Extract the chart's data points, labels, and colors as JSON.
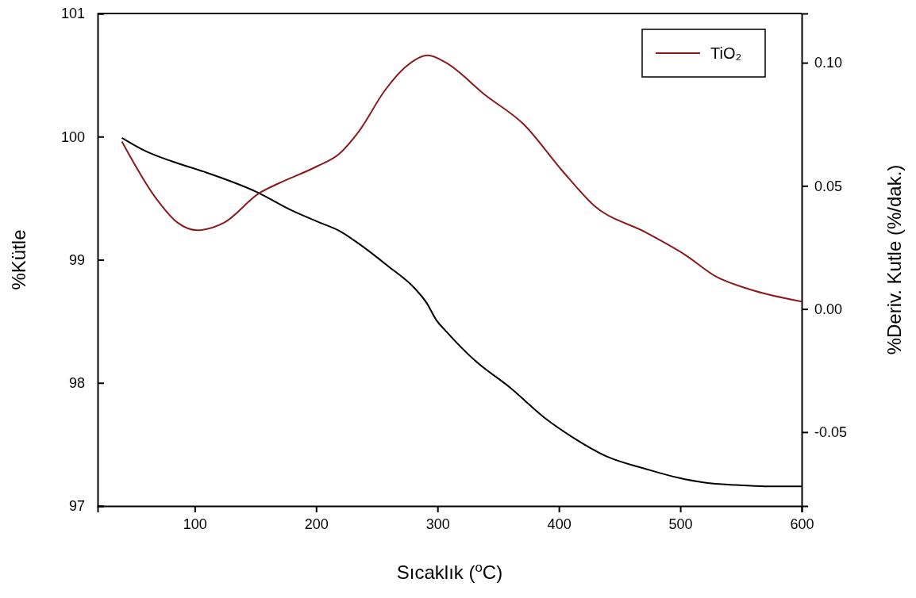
{
  "chart_data": {
    "type": "line",
    "xlabel": "Sıcaklık ($^{o}$C)",
    "ylabel": "%Kütle",
    "y2label": "%Deriv. Kutle (%/dak.)",
    "xlim": [
      20,
      600
    ],
    "xticks": [
      100,
      200,
      300,
      400,
      500,
      600
    ],
    "ylim": [
      97,
      101
    ],
    "yticks": [
      97,
      98,
      99,
      100,
      101
    ],
    "y2lim": [
      -0.08,
      0.12
    ],
    "y2ticks": [
      {
        "value": -0.05,
        "label": "-0.05"
      },
      {
        "value": 0,
        "label": "0.00"
      },
      {
        "value": 0.05,
        "label": "0.05"
      },
      {
        "value": 0.1,
        "label": "0.10"
      }
    ],
    "grid": false,
    "legend": "top right",
    "line_style": "solid",
    "marker": "none",
    "series": [
      {
        "color": "#000000",
        "axis": "y",
        "x": [
          40,
          60,
          81,
          109,
          151,
          180,
          201,
          220,
          238,
          259,
          281,
          291,
          299,
          307,
          331,
          360,
          389,
          411,
          440,
          472,
          498,
          520,
          546,
          570,
          600
        ],
        "values": [
          99.99,
          99.88,
          99.8,
          99.71,
          99.55,
          99.4,
          99.31,
          99.23,
          99.11,
          98.95,
          98.77,
          98.65,
          98.51,
          98.42,
          98.18,
          97.96,
          97.71,
          97.56,
          97.4,
          97.3,
          97.23,
          97.19,
          97.17,
          97.16,
          97.16
        ]
      },
      {
        "name": "TiO₂",
        "color": "#8b1a1a",
        "axis": "y2",
        "x": [
          40,
          68,
          86,
          102,
          124,
          153,
          169,
          201,
          219,
          235,
          257,
          273,
          292,
          307,
          339,
          371,
          403,
          429,
          472,
          504,
          530,
          557,
          600
        ],
        "values": [
          0.068,
          0.045,
          0.035,
          0.032,
          0.035,
          0.047,
          0.051,
          0.058,
          0.063,
          0.072,
          0.089,
          0.098,
          0.103,
          0.1,
          0.087,
          0.075,
          0.056,
          0.042,
          0.031,
          0.022,
          0.013,
          0.008,
          0.003
        ]
      }
    ]
  }
}
